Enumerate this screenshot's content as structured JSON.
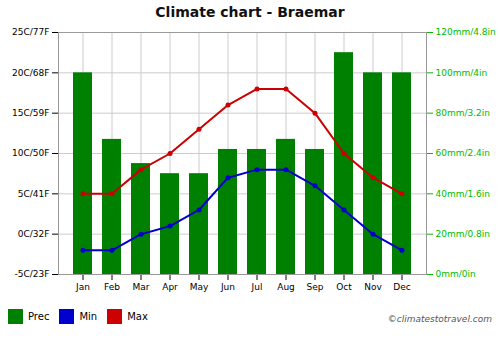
{
  "chart_data": {
    "type": "bar",
    "title": "Climate chart - Braemar",
    "categories": [
      "Jan",
      "Feb",
      "Mar",
      "Apr",
      "May",
      "Jun",
      "Jul",
      "Aug",
      "Sep",
      "Oct",
      "Nov",
      "Dec"
    ],
    "series": [
      {
        "name": "Prec",
        "type": "bar",
        "axis": "y2",
        "color": "#008000",
        "values": [
          100,
          67,
          55,
          50,
          50,
          62,
          62,
          67,
          62,
          110,
          100,
          100
        ]
      },
      {
        "name": "Min",
        "type": "line",
        "color": "#0000cc",
        "marker": "circle",
        "line_style": "solid",
        "values": [
          -2,
          -2,
          0,
          1,
          3,
          7,
          8,
          8,
          6,
          3,
          0,
          -2
        ]
      },
      {
        "name": "Max",
        "type": "line",
        "color": "#cc0000",
        "marker": "circle",
        "line_style": "solid",
        "values": [
          5,
          5,
          8,
          10,
          13,
          16,
          18,
          18,
          15,
          10,
          7,
          5
        ]
      }
    ],
    "ylim": [
      -5,
      25
    ],
    "yticks": [
      {
        "value": -5,
        "label": "-5C/23F"
      },
      {
        "value": 0,
        "label": "0C/32F"
      },
      {
        "value": 5,
        "label": "5C/41F"
      },
      {
        "value": 10,
        "label": "10C/50F"
      },
      {
        "value": 15,
        "label": "15C/59F"
      },
      {
        "value": 20,
        "label": "20C/68F"
      },
      {
        "value": 25,
        "label": "25C/77F"
      }
    ],
    "y2lim": [
      0,
      120
    ],
    "y2ticks": [
      {
        "value": 0,
        "label": "0mm/0in"
      },
      {
        "value": 20,
        "label": "20mm/0.8in"
      },
      {
        "value": 40,
        "label": "40mm/1.6in"
      },
      {
        "value": 60,
        "label": "60mm/2.4in"
      },
      {
        "value": 80,
        "label": "80mm/3.2in"
      },
      {
        "value": 100,
        "label": "100mm/4in"
      },
      {
        "value": 120,
        "label": "120mm/4.8in"
      }
    ],
    "grid": true,
    "legend": "bottom",
    "annotations": [
      "©climatestotravel.com"
    ]
  }
}
